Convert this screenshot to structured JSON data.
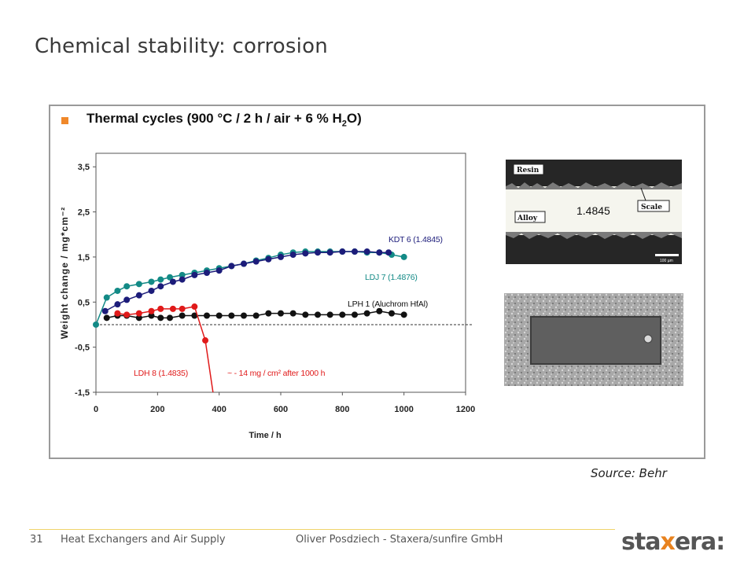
{
  "slide": {
    "title": "Chemical stability: corrosion",
    "heading_main": "Thermal cycles (900 °C / 2 h / air + 6 % H",
    "heading_sub": "2",
    "heading_end": "O)",
    "source": "Source: Behr"
  },
  "footer": {
    "page_number": "31",
    "topic": "Heat Exchangers and Air Supply",
    "author": "Oliver Posdziech - Staxera/sunfire GmbH"
  },
  "logo": {
    "part1": "sta",
    "part2": "x",
    "part3": "era",
    "part4": ":"
  },
  "micrograph": {
    "label_resin": "Resin",
    "label_alloy": "Alloy",
    "label_scale": "Scale",
    "label_material": "1.4845",
    "scale_bar": "100 µm"
  },
  "colors": {
    "accent": "#f0882a",
    "kdt": "#1c1c7a",
    "ldj": "#138a86",
    "lph": "#111111",
    "ldh": "#e01a1a"
  },
  "chart_data": {
    "type": "scatter",
    "xlabel": "Time / h",
    "ylabel": "Weight change / mg*cm⁻²",
    "xlim": [
      0,
      1200
    ],
    "ylim": [
      -1.5,
      3.8
    ],
    "xticks": [
      "0",
      "200",
      "400",
      "600",
      "800",
      "1000",
      "1200"
    ],
    "yticks": [
      "3,5",
      "2,5",
      "1,5",
      "0,5",
      "-0,5",
      "-1,5"
    ],
    "xtick_values": [
      0,
      200,
      400,
      600,
      800,
      1000,
      1200
    ],
    "ytick_values": [
      3.5,
      2.5,
      1.5,
      0.5,
      -0.5,
      -1.5
    ],
    "reference_line_y": 0,
    "series": [
      {
        "name": "LDJ 7 (1.4876)",
        "color": "#138a86",
        "x": [
          0,
          35,
          70,
          100,
          140,
          180,
          210,
          240,
          280,
          320,
          360,
          400,
          440,
          480,
          520,
          560,
          600,
          640,
          680,
          720,
          760,
          800,
          840,
          880,
          920,
          960,
          1000
        ],
        "y": [
          0.0,
          0.6,
          0.75,
          0.85,
          0.9,
          0.95,
          1.0,
          1.05,
          1.1,
          1.15,
          1.2,
          1.25,
          1.3,
          1.35,
          1.42,
          1.48,
          1.55,
          1.6,
          1.62,
          1.62,
          1.62,
          1.62,
          1.62,
          1.6,
          1.6,
          1.55,
          1.5
        ]
      },
      {
        "name": "KDT 6 (1.4845)",
        "color": "#1c1c7a",
        "x": [
          30,
          70,
          100,
          140,
          180,
          210,
          250,
          280,
          320,
          360,
          400,
          440,
          480,
          520,
          560,
          600,
          640,
          680,
          720,
          760,
          800,
          840,
          880,
          920,
          950
        ],
        "y": [
          0.3,
          0.45,
          0.55,
          0.65,
          0.75,
          0.85,
          0.95,
          1.0,
          1.1,
          1.15,
          1.2,
          1.3,
          1.35,
          1.4,
          1.45,
          1.5,
          1.55,
          1.58,
          1.6,
          1.6,
          1.62,
          1.62,
          1.62,
          1.6,
          1.6
        ]
      },
      {
        "name": "LPH 1 (Aluchrom HfAl)",
        "color": "#111111",
        "x": [
          35,
          70,
          100,
          140,
          180,
          210,
          240,
          280,
          320,
          360,
          400,
          440,
          480,
          520,
          560,
          600,
          640,
          680,
          720,
          760,
          800,
          840,
          880,
          920,
          960,
          1000
        ],
        "y": [
          0.15,
          0.2,
          0.2,
          0.15,
          0.2,
          0.15,
          0.15,
          0.2,
          0.2,
          0.2,
          0.2,
          0.2,
          0.2,
          0.2,
          0.25,
          0.25,
          0.25,
          0.22,
          0.22,
          0.22,
          0.22,
          0.22,
          0.25,
          0.3,
          0.25,
          0.22
        ]
      },
      {
        "name": "LDH 8 (1.4835)",
        "color": "#e01a1a",
        "x": [
          70,
          100,
          140,
          180,
          210,
          250,
          280,
          320,
          355
        ],
        "y": [
          0.25,
          0.22,
          0.25,
          0.3,
          0.35,
          0.35,
          0.35,
          0.4,
          -0.35
        ]
      }
    ],
    "ldh_drop_to_x": 380,
    "annotations": [
      {
        "text": "KDT 6 (1.4845)",
        "color": "#1c1c7a"
      },
      {
        "text": "LDJ 7 (1.4876)",
        "color": "#138a86"
      },
      {
        "text": "LPH 1 (Aluchrom HfAl)",
        "color": "#111111"
      },
      {
        "text": "LDH 8 (1.4835)",
        "color": "#e01a1a"
      },
      {
        "text": "~ - 14 mg / cm² after 1000 h",
        "color": "#e01a1a"
      }
    ]
  }
}
